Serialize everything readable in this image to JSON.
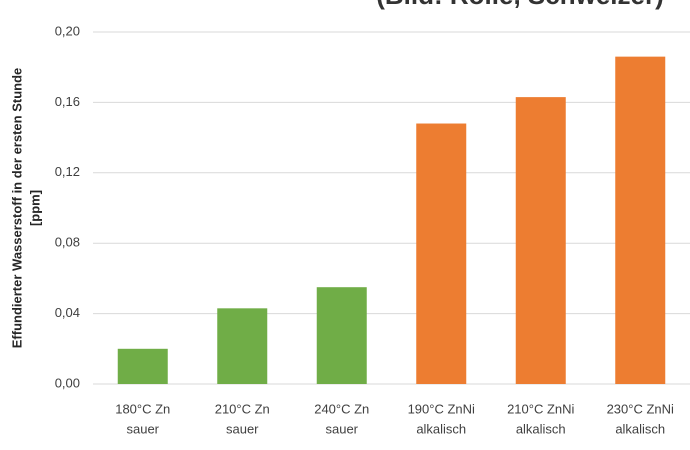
{
  "chart_data": {
    "type": "bar",
    "title": "(Bild: Rolle, Schweizer)",
    "y_label": [
      "Effundierter Wasserstoff in der ersten Stunde",
      "[ppm]"
    ],
    "categories": [
      [
        "180°C Zn",
        "sauer"
      ],
      [
        "210°C Zn",
        "sauer"
      ],
      [
        "240°C Zn",
        "sauer"
      ],
      [
        "190°C ZnNi",
        "alkalisch"
      ],
      [
        "210°C ZnNi",
        "alkalisch"
      ],
      [
        "230°C ZnNi",
        "alkalisch"
      ]
    ],
    "values": [
      0.02,
      0.043,
      0.055,
      0.148,
      0.163,
      0.186
    ],
    "colors": [
      "#70ad47",
      "#70ad47",
      "#70ad47",
      "#ed7d31",
      "#ed7d31",
      "#ed7d31"
    ],
    "ylim": [
      0,
      0.2
    ],
    "yticks": [
      {
        "value": 0,
        "label": "0,00"
      },
      {
        "value": 0.04,
        "label": "0,04"
      },
      {
        "value": 0.08,
        "label": "0,08"
      },
      {
        "value": 0.12,
        "label": "0,12"
      },
      {
        "value": 0.16,
        "label": "0,16"
      },
      {
        "value": 0.2,
        "label": "0,20"
      }
    ],
    "grid": true
  }
}
